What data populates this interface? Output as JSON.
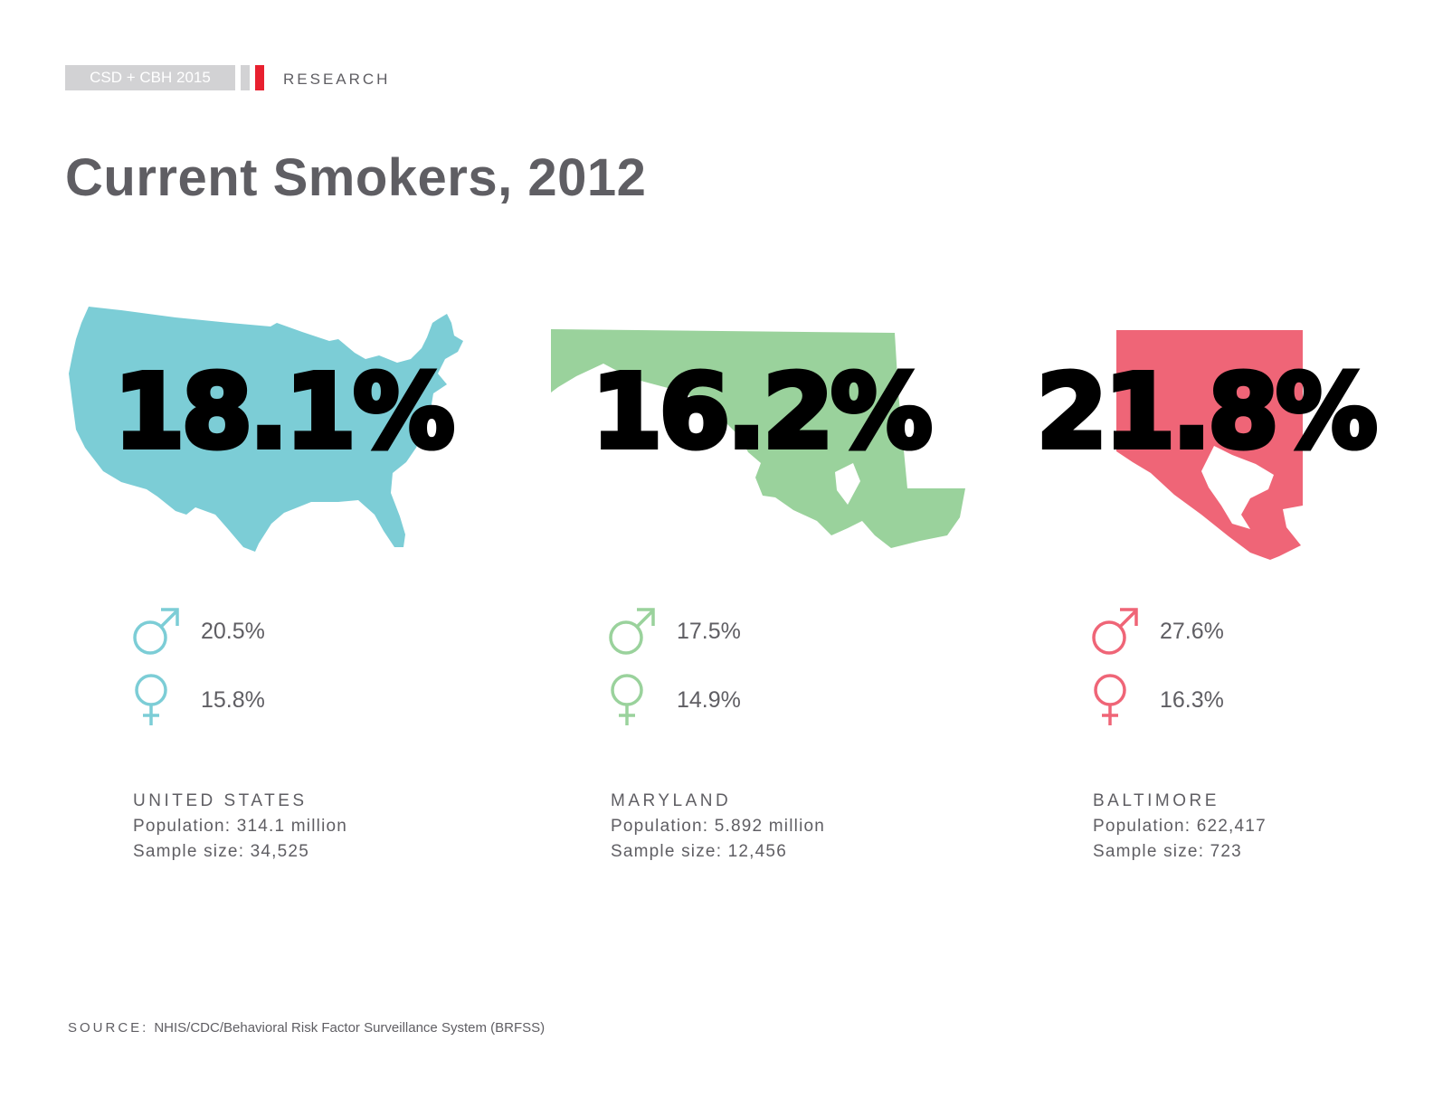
{
  "header": {
    "tag": "CSD + CBH 2015",
    "section": "RESEARCH"
  },
  "title": "Current Smokers, 2012",
  "colors": {
    "united_states": "#7ccdd6",
    "maryland": "#9ad29c",
    "baltimore": "#ef6577",
    "accent_red": "#e8202f",
    "tag_grey": "#d2d2d4",
    "text": "#5f5e63"
  },
  "regions": [
    {
      "id": "united-states",
      "map_icon": "usa-map-icon",
      "overall_pct": "18.1%",
      "male_pct": "20.5%",
      "female_pct": "15.8%",
      "name": "UNITED STATES",
      "population": "Population: 314.1 million",
      "sample": "Sample size: 34,525"
    },
    {
      "id": "maryland",
      "map_icon": "maryland-map-icon",
      "overall_pct": "16.2%",
      "male_pct": "17.5%",
      "female_pct": "14.9%",
      "name": "MARYLAND",
      "population": "Population: 5.892 million",
      "sample": "Sample size: 12,456"
    },
    {
      "id": "baltimore",
      "map_icon": "baltimore-map-icon",
      "overall_pct": "21.8%",
      "male_pct": "27.6%",
      "female_pct": "16.3%",
      "name": "BALTIMORE",
      "population": "Population: 622,417",
      "sample": "Sample size: 723"
    }
  ],
  "source": {
    "label": "SOURCE:",
    "text": "NHIS/CDC/Behavioral Risk Factor Surveillance System (BRFSS)"
  }
}
